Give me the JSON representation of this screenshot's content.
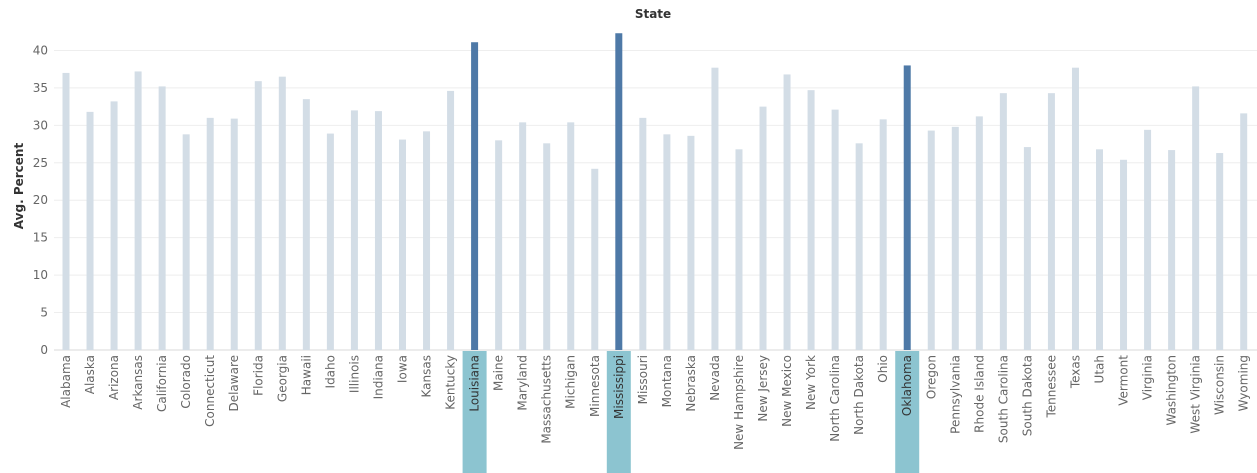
{
  "colors": {
    "bar_default": "#d3dde6",
    "bar_selected": "#4e79a7",
    "label_highlight": "#8cc4d0",
    "gridline": "#eeeeee",
    "text": "#666666"
  },
  "chart_data": {
    "type": "bar",
    "title": "State",
    "xlabel": "",
    "ylabel": "Avg. Percent",
    "ylim": [
      0,
      43
    ],
    "yticks": [
      0,
      5,
      10,
      15,
      20,
      25,
      30,
      35,
      40
    ],
    "grid": true,
    "categories": [
      "Alabama",
      "Alaska",
      "Arizona",
      "Arkansas",
      "California",
      "Colorado",
      "Connecticut",
      "Delaware",
      "Florida",
      "Georgia",
      "Hawaii",
      "Idaho",
      "Illinois",
      "Indiana",
      "Iowa",
      "Kansas",
      "Kentucky",
      "Louisiana",
      "Maine",
      "Maryland",
      "Massachusetts",
      "Michigan",
      "Minnesota",
      "Mississippi",
      "Missouri",
      "Montana",
      "Nebraska",
      "Nevada",
      "New Hampshire",
      "New Jersey",
      "New Mexico",
      "New York",
      "North Carolina",
      "North Dakota",
      "Ohio",
      "Oklahoma",
      "Oregon",
      "Pennsylvania",
      "Rhode Island",
      "South Carolina",
      "South Dakota",
      "Tennessee",
      "Texas",
      "Utah",
      "Vermont",
      "Virginia",
      "Washington",
      "West Virginia",
      "Wisconsin",
      "Wyoming"
    ],
    "values": [
      37.0,
      31.8,
      33.2,
      37.2,
      35.2,
      28.8,
      31.0,
      30.9,
      35.9,
      36.5,
      33.5,
      28.9,
      32.0,
      31.9,
      28.1,
      29.2,
      34.6,
      41.1,
      28.0,
      30.4,
      27.6,
      30.4,
      24.2,
      42.3,
      31.0,
      28.8,
      28.6,
      37.7,
      26.8,
      32.5,
      36.8,
      34.7,
      32.1,
      27.6,
      30.8,
      38.0,
      29.3,
      29.8,
      31.2,
      34.3,
      27.1,
      34.3,
      37.7,
      26.8,
      25.4,
      29.4,
      26.7,
      35.2,
      26.3,
      31.6
    ],
    "selected": [
      "Louisiana",
      "Mississippi",
      "Oklahoma"
    ]
  }
}
